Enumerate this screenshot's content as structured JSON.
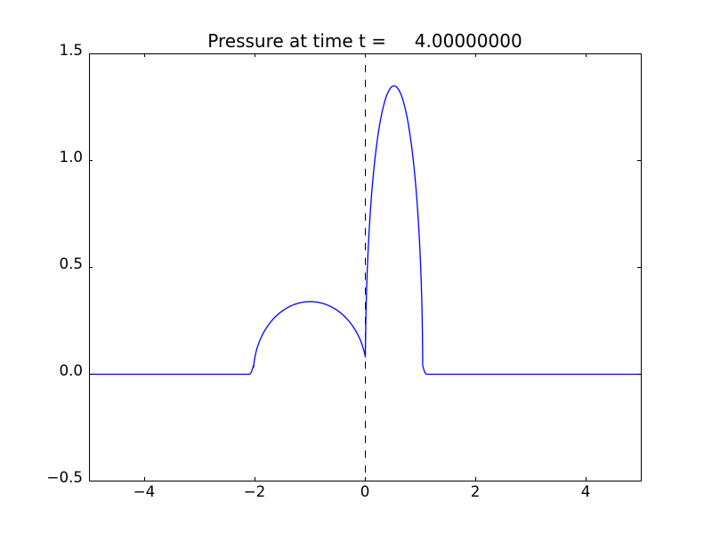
{
  "chart_data": {
    "type": "line",
    "title": "Pressure at time t =     4.00000000",
    "xlim": [
      -5,
      5
    ],
    "ylim": [
      -0.5,
      1.5
    ],
    "xticks": {
      "values": [
        -4,
        -2,
        0,
        2,
        4
      ],
      "labels": [
        "−4",
        "−2",
        "0",
        "2",
        "4"
      ]
    },
    "yticks": {
      "values": [
        -0.5,
        0.0,
        0.5,
        1.0,
        1.5
      ],
      "labels": [
        "−0.5",
        "0.0",
        "0.5",
        "1.0",
        "1.5"
      ]
    },
    "grid": false,
    "legend": null,
    "axes_color": "#000000",
    "series": [
      {
        "name": "pressure",
        "color": "#0000ff",
        "line_width": 1.3,
        "baseline": 0.0,
        "pulses": [
          {
            "shape": "half_ellipse",
            "center": -1.0,
            "half_width": 1.03,
            "amplitude": 0.34,
            "x_start": -2.03,
            "x_end": 0.0,
            "tail": {
              "side": "left",
              "length": 0.075,
              "height": 0.04
            }
          },
          {
            "shape": "half_ellipse",
            "center": 0.52,
            "half_width": 0.52,
            "amplitude": 1.35,
            "x_start": 0.0,
            "x_end": 1.04,
            "tail": {
              "side": "right",
              "length": 0.075,
              "height": 0.04
            }
          }
        ],
        "key_points": [
          [
            -5,
            0.0
          ],
          [
            -2.03,
            0.0
          ],
          [
            -1.0,
            0.34
          ],
          [
            0.0,
            0.081
          ],
          [
            0.52,
            1.35
          ],
          [
            1.04,
            0.0
          ],
          [
            5,
            0.0
          ]
        ]
      }
    ],
    "reference_lines": [
      {
        "orientation": "vertical",
        "x": 0.0,
        "style": "dashed",
        "color": "#000000",
        "dash": [
          8.33,
          8.33
        ]
      }
    ]
  }
}
